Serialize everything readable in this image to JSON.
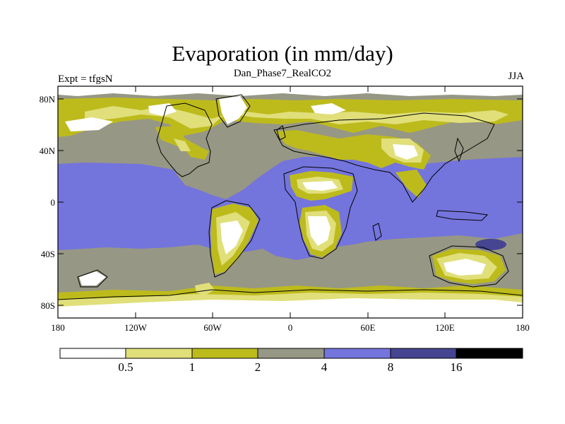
{
  "title": "Evaporation (in mm/day)",
  "subtitle": "Dan_Phase7_RealCO2",
  "left_label": "Expt = tfgsN",
  "right_label": "JJA",
  "axes": {
    "lat_labels": [
      "80N",
      "40N",
      "0",
      "40S",
      "80S"
    ],
    "lon_labels": [
      "180",
      "120W",
      "60W",
      "0",
      "60E",
      "120E",
      "180"
    ]
  },
  "legend": {
    "labels": [
      "0.5",
      "1",
      "2",
      "4",
      "8",
      "16"
    ],
    "colors": [
      "#ffffff",
      "#e0df7a",
      "#bdbb1c",
      "#979785",
      "#7474dd",
      "#454592",
      "#000000"
    ]
  },
  "colors": {
    "ocean": "#7474dd",
    "band": "#979785",
    "dry": "#bdbb1c",
    "very_dry": "#e0df7a",
    "deep": "#454592"
  }
}
